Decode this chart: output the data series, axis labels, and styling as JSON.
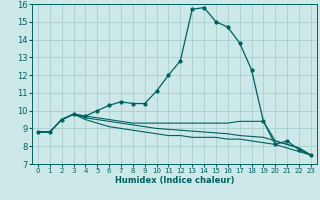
{
  "title": "",
  "xlabel": "Humidex (Indice chaleur)",
  "xlim": [
    -0.5,
    23.5
  ],
  "ylim": [
    7,
    16
  ],
  "yticks": [
    7,
    8,
    9,
    10,
    11,
    12,
    13,
    14,
    15,
    16
  ],
  "xticks": [
    0,
    1,
    2,
    3,
    4,
    5,
    6,
    7,
    8,
    9,
    10,
    11,
    12,
    13,
    14,
    15,
    16,
    17,
    18,
    19,
    20,
    21,
    22,
    23
  ],
  "bg_color": "#cce8e8",
  "grid_color": "#aad0d0",
  "line_color": "#006060",
  "line1_x": [
    0,
    1,
    2,
    3,
    4,
    5,
    6,
    7,
    8,
    9,
    10,
    11,
    12,
    13,
    14,
    15,
    16,
    17,
    18,
    19,
    20,
    21,
    22,
    23
  ],
  "line1_y": [
    8.8,
    8.8,
    9.5,
    9.8,
    9.7,
    10.0,
    10.3,
    10.5,
    10.4,
    10.4,
    11.1,
    12.0,
    12.8,
    15.7,
    15.8,
    15.0,
    14.7,
    13.8,
    12.3,
    9.4,
    8.1,
    8.3,
    7.8,
    7.5
  ],
  "line2_x": [
    0,
    1,
    2,
    3,
    4,
    5,
    6,
    7,
    8,
    9,
    10,
    11,
    12,
    13,
    14,
    15,
    16,
    17,
    18,
    19,
    20,
    21,
    22,
    23
  ],
  "line2_y": [
    8.8,
    8.8,
    9.5,
    9.8,
    9.5,
    9.3,
    9.1,
    9.0,
    8.9,
    8.8,
    8.7,
    8.6,
    8.6,
    8.5,
    8.5,
    8.5,
    8.4,
    8.4,
    8.3,
    8.2,
    8.1,
    7.9,
    7.7,
    7.5
  ],
  "line3_x": [
    0,
    1,
    2,
    3,
    4,
    5,
    6,
    7,
    8,
    9,
    10,
    11,
    12,
    13,
    14,
    15,
    16,
    17,
    18,
    19,
    20,
    21,
    22,
    23
  ],
  "line3_y": [
    8.8,
    8.8,
    9.5,
    9.8,
    9.6,
    9.5,
    9.4,
    9.3,
    9.2,
    9.1,
    9.0,
    8.95,
    8.9,
    8.85,
    8.8,
    8.75,
    8.7,
    8.6,
    8.55,
    8.5,
    8.3,
    8.1,
    7.9,
    7.5
  ],
  "line4_x": [
    0,
    1,
    2,
    3,
    4,
    5,
    6,
    7,
    8,
    9,
    10,
    11,
    12,
    13,
    14,
    15,
    16,
    17,
    18,
    19,
    20,
    21,
    22,
    23
  ],
  "line4_y": [
    8.8,
    8.8,
    9.5,
    9.8,
    9.7,
    9.6,
    9.5,
    9.4,
    9.3,
    9.3,
    9.3,
    9.3,
    9.3,
    9.3,
    9.3,
    9.3,
    9.3,
    9.4,
    9.4,
    9.4,
    8.3,
    8.1,
    7.9,
    7.5
  ]
}
